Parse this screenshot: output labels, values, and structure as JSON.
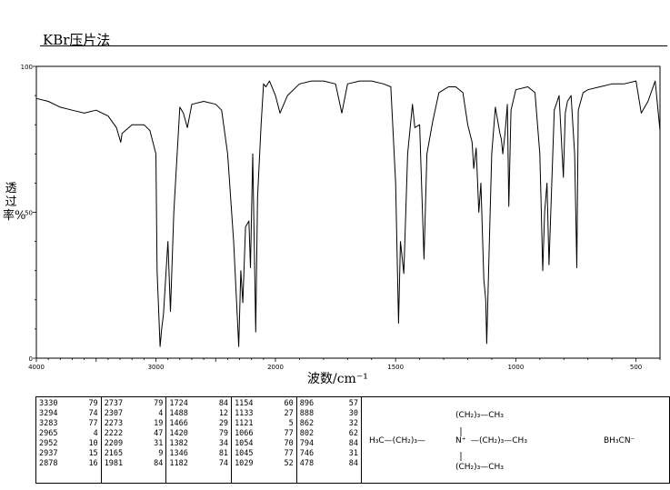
{
  "header": {
    "title": "KBr压片法"
  },
  "chart_data": {
    "type": "line",
    "title": "",
    "xlabel": "波数/cm⁻¹",
    "ylabel": "透过率%",
    "xlim": [
      4000,
      400
    ],
    "ylim": [
      0,
      100
    ],
    "x_ticks": [
      "4000",
      "3000",
      "2000",
      "1500",
      "1000",
      "500"
    ],
    "y_ticks": [
      "0",
      "50",
      "100"
    ],
    "grid": false,
    "series": [
      {
        "x": [
          4000,
          3900,
          3800,
          3700,
          3600,
          3500,
          3400,
          3330,
          3294,
          3283,
          3200,
          3100,
          3050,
          3000,
          2990,
          2965,
          2952,
          2937,
          2900,
          2878,
          2850,
          2800,
          2770,
          2737,
          2700,
          2600,
          2500,
          2450,
          2400,
          2350,
          2320,
          2307,
          2290,
          2273,
          2250,
          2222,
          2209,
          2190,
          2165,
          2150,
          2120,
          2100,
          2080,
          2050,
          2000,
          1981,
          1950,
          1900,
          1850,
          1800,
          1750,
          1724,
          1700,
          1650,
          1600,
          1550,
          1520,
          1500,
          1488,
          1480,
          1466,
          1450,
          1430,
          1420,
          1400,
          1382,
          1370,
          1346,
          1320,
          1300,
          1280,
          1250,
          1220,
          1200,
          1182,
          1175,
          1165,
          1154,
          1145,
          1133,
          1125,
          1121,
          1110,
          1100,
          1085,
          1066,
          1060,
          1054,
          1045,
          1035,
          1029,
          1020,
          1000,
          950,
          920,
          900,
          896,
          888,
          880,
          870,
          862,
          840,
          820,
          802,
          794,
          785,
          770,
          755,
          746,
          740,
          720,
          700,
          650,
          600,
          550,
          500,
          478,
          450,
          420,
          400
        ],
        "y": [
          89,
          88,
          86,
          85,
          84,
          85,
          83,
          79,
          74,
          77,
          80,
          80,
          78,
          70,
          30,
          4,
          10,
          15,
          40,
          16,
          50,
          86,
          84,
          79,
          87,
          88,
          87,
          85,
          70,
          40,
          15,
          4,
          30,
          19,
          45,
          47,
          31,
          70,
          9,
          55,
          80,
          94,
          93,
          95,
          90,
          84,
          90,
          94,
          95,
          95,
          94,
          84,
          94,
          95,
          95,
          94,
          93,
          60,
          12,
          40,
          29,
          70,
          87,
          79,
          80,
          34,
          70,
          81,
          91,
          92,
          93,
          93,
          91,
          80,
          74,
          65,
          72,
          50,
          60,
          27,
          20,
          5,
          40,
          70,
          86,
          77,
          75,
          70,
          77,
          87,
          52,
          85,
          92,
          93,
          91,
          70,
          57,
          30,
          50,
          60,
          32,
          85,
          90,
          62,
          84,
          88,
          90,
          70,
          31,
          85,
          91,
          92,
          93,
          94,
          94,
          95,
          84,
          88,
          95,
          78
        ]
      }
    ],
    "peak_table": [
      [
        "3330",
        "79"
      ],
      [
        "3294",
        "74"
      ],
      [
        "3283",
        "77"
      ],
      [
        "2965",
        "4"
      ],
      [
        "2952",
        "10"
      ],
      [
        "2937",
        "15"
      ],
      [
        "2878",
        "16"
      ],
      [
        "2737",
        "79"
      ],
      [
        "2307",
        "4"
      ],
      [
        "2273",
        "19"
      ],
      [
        "2222",
        "47"
      ],
      [
        "2209",
        "31"
      ],
      [
        "2165",
        "9"
      ],
      [
        "1981",
        "84"
      ],
      [
        "1724",
        "84"
      ],
      [
        "1488",
        "12"
      ],
      [
        "1466",
        "29"
      ],
      [
        "1420",
        "79"
      ],
      [
        "1382",
        "34"
      ],
      [
        "1346",
        "81"
      ],
      [
        "1182",
        "74"
      ],
      [
        "1154",
        "60"
      ],
      [
        "1133",
        "27"
      ],
      [
        "1121",
        "5"
      ],
      [
        "1066",
        "77"
      ],
      [
        "1054",
        "70"
      ],
      [
        "1045",
        "77"
      ],
      [
        "1029",
        "52"
      ],
      [
        "896",
        "57"
      ],
      [
        "888",
        "30"
      ],
      [
        "862",
        "32"
      ],
      [
        "802",
        "62"
      ],
      [
        "794",
        "84"
      ],
      [
        "746",
        "31"
      ],
      [
        "478",
        "84"
      ]
    ]
  },
  "structure": {
    "top_group": "(CH₂)₃—CH₃",
    "left_group": "H₃C—(CH₂)₃—",
    "nitrogen": "N⁺",
    "right_group": "—(CH₂)₃—CH₃",
    "bottom_group": "(CH₂)₃—CH₃",
    "counter_ion": "BH₃CN⁻"
  }
}
